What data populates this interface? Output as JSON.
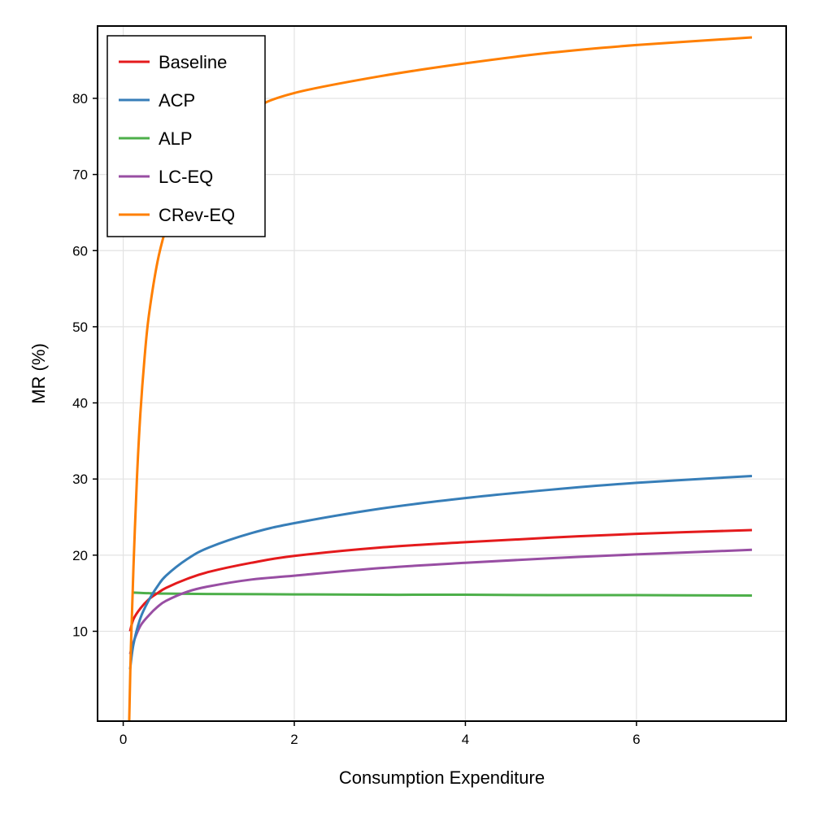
{
  "chart_data": {
    "type": "line",
    "title": "",
    "xlabel": "Consumption Expenditure",
    "ylabel": "MR (%)",
    "xlim": [
      -0.3,
      7.75
    ],
    "ylim": [
      -1.8,
      89.5
    ],
    "xticks": [
      0,
      2,
      4,
      6
    ],
    "yticks": [
      10,
      20,
      30,
      40,
      50,
      60,
      70,
      80
    ],
    "grid": true,
    "legend_position": "top-left",
    "series": [
      {
        "name": "Baseline",
        "color": "#e41a1c",
        "x": [
          0.08,
          0.12,
          0.2,
          0.3,
          0.4,
          0.5,
          0.75,
          1.0,
          1.5,
          2.0,
          3.0,
          4.0,
          5.0,
          6.0,
          7.35
        ],
        "y": [
          10.0,
          11.6,
          13.0,
          14.2,
          15.0,
          15.7,
          16.9,
          17.8,
          19.0,
          19.9,
          21.0,
          21.7,
          22.3,
          22.8,
          23.3
        ]
      },
      {
        "name": "ACP",
        "color": "#377eb8",
        "x": [
          0.08,
          0.12,
          0.2,
          0.3,
          0.4,
          0.5,
          0.75,
          1.0,
          1.5,
          2.0,
          3.0,
          4.0,
          5.0,
          6.0,
          7.35
        ],
        "y": [
          5.0,
          8.3,
          11.7,
          14.1,
          15.9,
          17.3,
          19.5,
          21.0,
          22.9,
          24.2,
          26.1,
          27.5,
          28.6,
          29.5,
          30.4
        ]
      },
      {
        "name": "ALP",
        "color": "#4daf4a",
        "x": [
          0.1,
          0.3,
          0.5,
          1.0,
          2.0,
          3.0,
          4.0,
          5.0,
          6.0,
          7.35
        ],
        "y": [
          15.1,
          15.0,
          14.95,
          14.9,
          14.85,
          14.8,
          14.8,
          14.75,
          14.75,
          14.7
        ]
      },
      {
        "name": "LC-EQ",
        "color": "#984ea3",
        "x": [
          0.08,
          0.12,
          0.2,
          0.3,
          0.4,
          0.5,
          0.75,
          1.0,
          1.5,
          2.0,
          3.0,
          4.0,
          5.0,
          6.0,
          7.35
        ],
        "y": [
          7.0,
          8.6,
          10.7,
          12.1,
          13.2,
          14.0,
          15.2,
          15.9,
          16.8,
          17.3,
          18.3,
          19.0,
          19.6,
          20.1,
          20.7
        ]
      },
      {
        "name": "CRev-EQ",
        "color": "#ff7f00",
        "x": [
          0.07,
          0.09,
          0.12,
          0.16,
          0.2,
          0.25,
          0.3,
          0.4,
          0.5,
          0.6,
          0.75,
          1.0,
          1.5,
          2.0,
          3.0,
          4.0,
          5.0,
          6.0,
          7.35
        ],
        "y": [
          -1.8,
          8.0,
          18.5,
          30.0,
          38.5,
          46.0,
          51.5,
          58.5,
          63.0,
          66.5,
          70.5,
          74.5,
          78.5,
          80.7,
          82.9,
          84.6,
          86.0,
          87.0,
          88.0
        ]
      }
    ]
  }
}
